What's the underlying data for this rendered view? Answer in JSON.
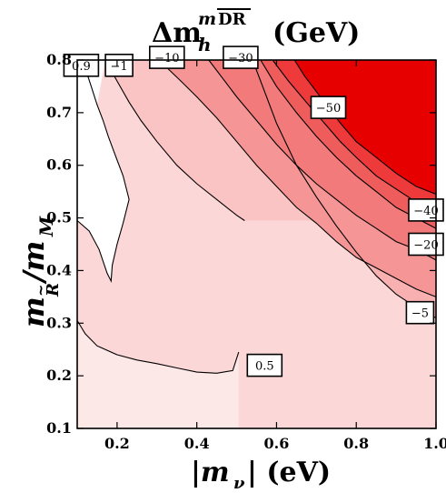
{
  "chart_data": {
    "type": "contour",
    "title_main": "Δm",
    "title_sub": "h",
    "title_sup_italic": "m",
    "title_sup_bar": "DR",
    "title_unit": "(GeV)",
    "xlabel": "|m",
    "xlabel_sub": "ν",
    "xlabel_tail": "| (eV)",
    "ylabel": "m",
    "ylabel_sub": "R",
    "ylabel_tail": "/m",
    "ylabel_tail_sub": "M",
    "xlim": [
      0.1,
      1.0
    ],
    "ylim": [
      0.1,
      0.8
    ],
    "xticks": [
      {
        "value": 0.2,
        "label": "0.2"
      },
      {
        "value": 0.4,
        "label": "0.4"
      },
      {
        "value": 0.6,
        "label": "0.6"
      },
      {
        "value": 0.8,
        "label": "0.8"
      },
      {
        "value": 1.0,
        "label": "1.0"
      }
    ],
    "yticks": [
      {
        "value": 0.1,
        "label": "0.1"
      },
      {
        "value": 0.2,
        "label": "0.2"
      },
      {
        "value": 0.3,
        "label": "0.3"
      },
      {
        "value": 0.4,
        "label": "0.4"
      },
      {
        "value": 0.5,
        "label": "0.5"
      },
      {
        "value": 0.6,
        "label": "0.6"
      },
      {
        "value": 0.7,
        "label": "0.7"
      },
      {
        "value": 0.8,
        "label": "0.8"
      }
    ],
    "data_region": {
      "x": [
        0.1,
        1.0
      ],
      "y": [
        0.1,
        0.8
      ],
      "top_edge_break_x": 0.17,
      "low_y_left": 0.5
    },
    "contours": [
      {
        "level": "0.5",
        "label": "0.5",
        "label_at": [
          0.57,
          0.22
        ],
        "points": [
          [
            0.1,
            0.305
          ],
          [
            0.12,
            0.28
          ],
          [
            0.15,
            0.257
          ],
          [
            0.2,
            0.24
          ],
          [
            0.25,
            0.23
          ],
          [
            0.3,
            0.223
          ],
          [
            0.35,
            0.215
          ],
          [
            0.4,
            0.207
          ],
          [
            0.45,
            0.205
          ],
          [
            0.49,
            0.21
          ],
          [
            0.505,
            0.245
          ]
        ]
      },
      {
        "level": "0.9",
        "label": "0.9",
        "label_at": [
          0.11,
          0.79
        ],
        "points": [
          [
            0.1,
            0.495
          ],
          [
            0.13,
            0.475
          ],
          [
            0.155,
            0.44
          ],
          [
            0.175,
            0.395
          ],
          [
            0.185,
            0.38
          ],
          [
            0.188,
            0.41
          ],
          [
            0.2,
            0.45
          ],
          [
            0.215,
            0.49
          ],
          [
            0.23,
            0.535
          ],
          [
            0.215,
            0.58
          ],
          [
            0.195,
            0.62
          ],
          [
            0.178,
            0.655
          ],
          [
            0.165,
            0.685
          ],
          [
            0.15,
            0.715
          ],
          [
            0.135,
            0.75
          ],
          [
            0.122,
            0.78
          ]
        ]
      },
      {
        "level": "-1",
        "label": "−1",
        "label_at": [
          0.205,
          0.79
        ],
        "points": [
          [
            0.17,
            0.8
          ],
          [
            0.2,
            0.76
          ],
          [
            0.23,
            0.72
          ],
          [
            0.26,
            0.685
          ],
          [
            0.3,
            0.645
          ],
          [
            0.35,
            0.6
          ],
          [
            0.4,
            0.565
          ],
          [
            0.45,
            0.535
          ],
          [
            0.5,
            0.505
          ],
          [
            0.52,
            0.495
          ]
        ]
      },
      {
        "level": "-5",
        "label": "−5",
        "label_at": [
          0.96,
          0.32
        ],
        "points": [
          [
            0.54,
            0.8
          ],
          [
            0.57,
            0.74
          ],
          [
            0.6,
            0.68
          ],
          [
            0.65,
            0.6
          ],
          [
            0.7,
            0.54
          ],
          [
            0.75,
            0.485
          ],
          [
            0.8,
            0.435
          ],
          [
            0.85,
            0.39
          ],
          [
            0.9,
            0.355
          ],
          [
            0.95,
            0.33
          ],
          [
            1.0,
            0.31
          ]
        ]
      },
      {
        "level": "-10",
        "label": "−10",
        "label_at": [
          0.325,
          0.805
        ],
        "points": [
          [
            0.305,
            0.8
          ],
          [
            0.36,
            0.76
          ],
          [
            0.4,
            0.73
          ],
          [
            0.45,
            0.69
          ],
          [
            0.5,
            0.645
          ],
          [
            0.55,
            0.6
          ],
          [
            0.6,
            0.56
          ],
          [
            0.65,
            0.52
          ],
          [
            0.7,
            0.49
          ],
          [
            0.75,
            0.455
          ],
          [
            0.8,
            0.425
          ],
          [
            0.85,
            0.405
          ],
          [
            0.9,
            0.385
          ],
          [
            0.95,
            0.365
          ],
          [
            1.0,
            0.35
          ]
        ]
      },
      {
        "level": "-20",
        "label": "−20",
        "label_at": [
          0.975,
          0.45
        ],
        "points": [
          [
            0.43,
            0.8
          ],
          [
            0.47,
            0.76
          ],
          [
            0.5,
            0.73
          ],
          [
            0.55,
            0.685
          ],
          [
            0.6,
            0.64
          ],
          [
            0.65,
            0.6
          ],
          [
            0.7,
            0.565
          ],
          [
            0.75,
            0.535
          ],
          [
            0.8,
            0.505
          ],
          [
            0.85,
            0.48
          ],
          [
            0.9,
            0.455
          ],
          [
            0.95,
            0.44
          ],
          [
            1.0,
            0.42
          ]
        ]
      },
      {
        "level": "-30",
        "label": "−30",
        "label_at": [
          0.51,
          0.805
        ],
        "points": [
          [
            0.56,
            0.8
          ],
          [
            0.6,
            0.75
          ],
          [
            0.65,
            0.7
          ],
          [
            0.7,
            0.655
          ],
          [
            0.75,
            0.615
          ],
          [
            0.8,
            0.58
          ],
          [
            0.85,
            0.55
          ],
          [
            0.9,
            0.52
          ],
          [
            0.95,
            0.5
          ],
          [
            1.0,
            0.48
          ]
        ]
      },
      {
        "level": "-40",
        "label": "−40",
        "label_at": [
          0.975,
          0.515
        ],
        "points": [
          [
            0.59,
            0.8
          ],
          [
            0.63,
            0.76
          ],
          [
            0.68,
            0.715
          ],
          [
            0.72,
            0.68
          ],
          [
            0.76,
            0.645
          ],
          [
            0.8,
            0.615
          ],
          [
            0.85,
            0.58
          ],
          [
            0.9,
            0.555
          ],
          [
            0.95,
            0.53
          ],
          [
            1.0,
            0.51
          ]
        ]
      },
      {
        "level": "-50",
        "label": "−50",
        "label_at": [
          0.73,
          0.71
        ],
        "points": [
          [
            0.645,
            0.8
          ],
          [
            0.67,
            0.77
          ],
          [
            0.7,
            0.74
          ],
          [
            0.73,
            0.71
          ],
          [
            0.76,
            0.68
          ],
          [
            0.8,
            0.645
          ],
          [
            0.85,
            0.615
          ],
          [
            0.9,
            0.585
          ],
          [
            0.95,
            0.56
          ],
          [
            1.0,
            0.545
          ]
        ]
      }
    ],
    "colors": {
      "band_0": "#fde8e8",
      "band_1": "#fcd7d7",
      "band_2": "#fac4c4",
      "band_3": "#f8b0b0",
      "band_4": "#f59595",
      "band_5": "#f27a7a",
      "band_6": "#ef5c5c",
      "band_7": "#ee3a3a",
      "band_8": "#e60000",
      "contour_line": "#000000"
    }
  }
}
